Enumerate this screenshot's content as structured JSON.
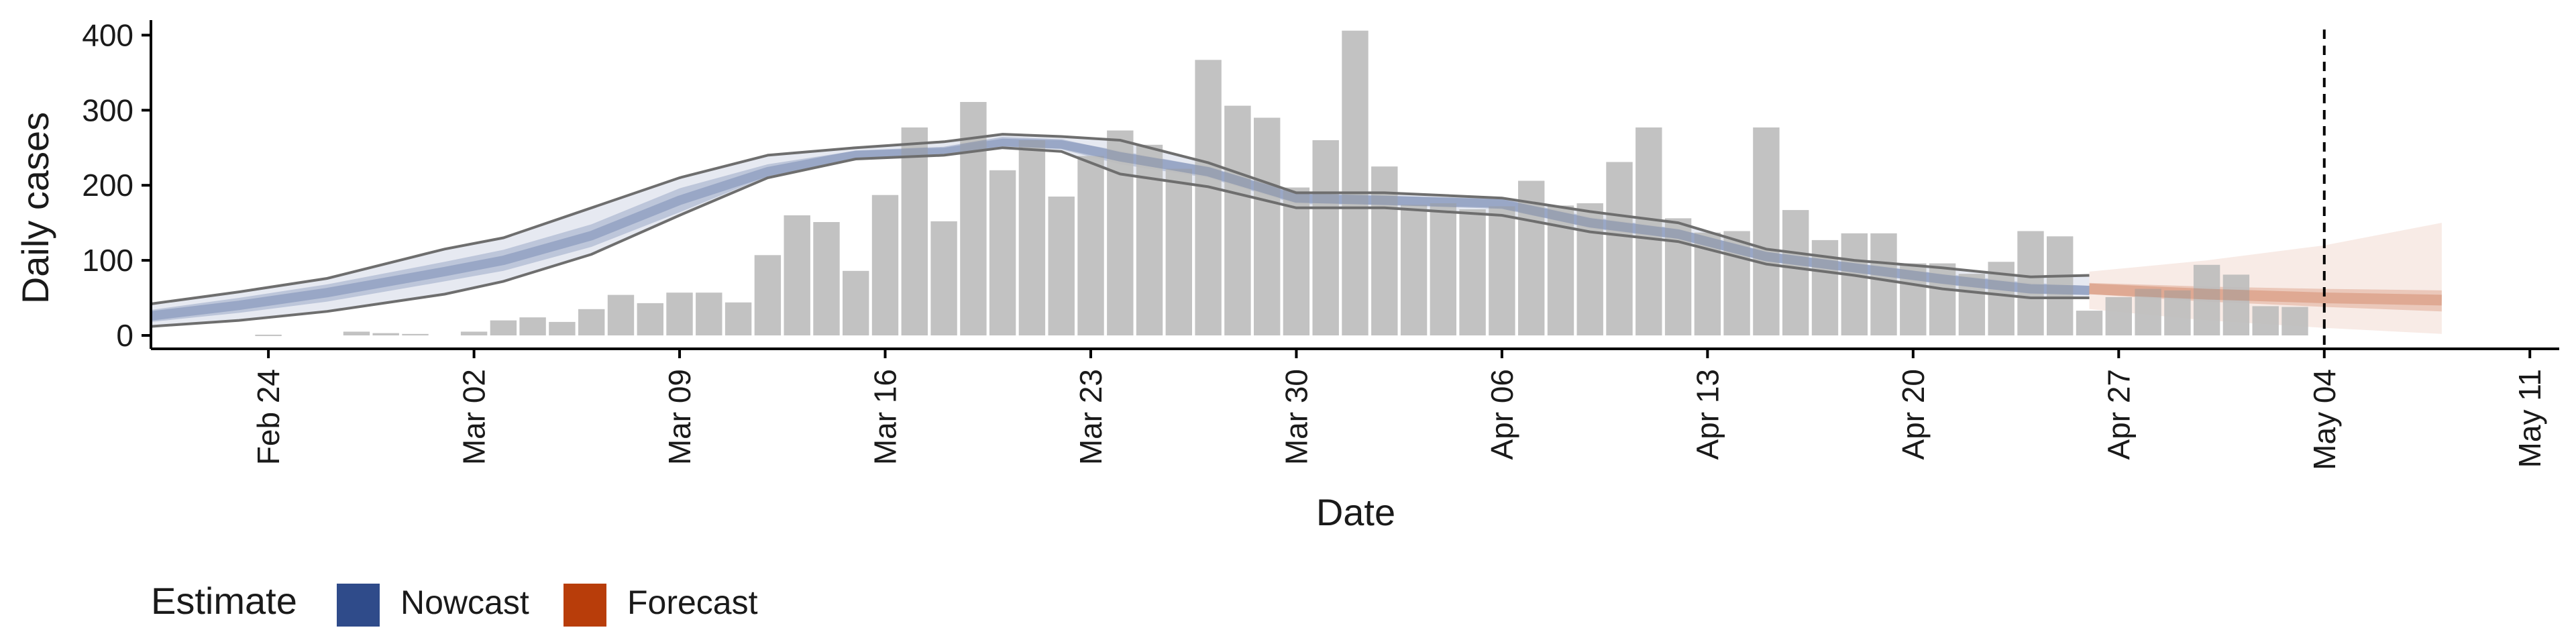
{
  "chart_data": {
    "type": "bar",
    "title": "",
    "xlabel": "Date",
    "ylabel": "Daily cases",
    "ylim": [
      0,
      420
    ],
    "xlim": [
      "2020-02-20",
      "2020-05-12"
    ],
    "yticks": [
      0,
      100,
      200,
      300,
      400
    ],
    "xticks": [
      {
        "date": "2020-02-24",
        "label": "Feb 24"
      },
      {
        "date": "2020-03-02",
        "label": "Mar 02"
      },
      {
        "date": "2020-03-09",
        "label": "Mar 09"
      },
      {
        "date": "2020-03-16",
        "label": "Mar 16"
      },
      {
        "date": "2020-03-23",
        "label": "Mar 23"
      },
      {
        "date": "2020-03-30",
        "label": "Mar 30"
      },
      {
        "date": "2020-04-06",
        "label": "Apr 06"
      },
      {
        "date": "2020-04-13",
        "label": "Apr 13"
      },
      {
        "date": "2020-04-20",
        "label": "Apr 20"
      },
      {
        "date": "2020-04-27",
        "label": "Apr 27"
      },
      {
        "date": "2020-05-04",
        "label": "May 04"
      },
      {
        "date": "2020-05-11",
        "label": "May 11"
      }
    ],
    "reference_line_date": "2020-05-04",
    "grid": false,
    "legend": {
      "position": "bottom-left",
      "title": "Estimate",
      "entries": [
        {
          "name": "Nowcast",
          "color": "#2f4b8a"
        },
        {
          "name": "Forecast",
          "color": "#b83d0a"
        }
      ]
    },
    "bars": {
      "color": "#bdbdbd",
      "dates": [
        "2020-02-21",
        "2020-02-22",
        "2020-02-23",
        "2020-02-24",
        "2020-02-25",
        "2020-02-26",
        "2020-02-27",
        "2020-02-28",
        "2020-02-29",
        "2020-03-01",
        "2020-03-02",
        "2020-03-03",
        "2020-03-04",
        "2020-03-05",
        "2020-03-06",
        "2020-03-07",
        "2020-03-08",
        "2020-03-09",
        "2020-03-10",
        "2020-03-11",
        "2020-03-12",
        "2020-03-13",
        "2020-03-14",
        "2020-03-15",
        "2020-03-16",
        "2020-03-17",
        "2020-03-18",
        "2020-03-19",
        "2020-03-20",
        "2020-03-21",
        "2020-03-22",
        "2020-03-23",
        "2020-03-24",
        "2020-03-25",
        "2020-03-26",
        "2020-03-27",
        "2020-03-28",
        "2020-03-29",
        "2020-03-30",
        "2020-03-31",
        "2020-04-01",
        "2020-04-02",
        "2020-04-03",
        "2020-04-04",
        "2020-04-05",
        "2020-04-06",
        "2020-04-07",
        "2020-04-08",
        "2020-04-09",
        "2020-04-10",
        "2020-04-11",
        "2020-04-12",
        "2020-04-13",
        "2020-04-14",
        "2020-04-15",
        "2020-04-16",
        "2020-04-17",
        "2020-04-18",
        "2020-04-19",
        "2020-04-20",
        "2020-04-21",
        "2020-04-22",
        "2020-04-23",
        "2020-04-24",
        "2020-04-25",
        "2020-04-26",
        "2020-04-27",
        "2020-04-28",
        "2020-04-29",
        "2020-04-30",
        "2020-05-01",
        "2020-05-02",
        "2020-05-03",
        "2020-05-04"
      ],
      "values": [
        0,
        0,
        0,
        1,
        0,
        0,
        5,
        3,
        2,
        0,
        5,
        20,
        24,
        18,
        35,
        54,
        43,
        57,
        57,
        44,
        107,
        160,
        151,
        86,
        187,
        277,
        152,
        311,
        220,
        260,
        185,
        239,
        273,
        254,
        222,
        367,
        306,
        290,
        197,
        260,
        406,
        225,
        174,
        176,
        168,
        172,
        206,
        173,
        176,
        231,
        277,
        156,
        137,
        139,
        277,
        167,
        127,
        136,
        136,
        96,
        96,
        82,
        98,
        139,
        132,
        33,
        51,
        62,
        60,
        94,
        81,
        39,
        38,
        0
      ]
    },
    "series": [
      {
        "name": "Nowcast",
        "color": "#2f4b8a",
        "dates": [
          "2020-02-20",
          "2020-02-23",
          "2020-02-26",
          "2020-03-01",
          "2020-03-03",
          "2020-03-06",
          "2020-03-09",
          "2020-03-12",
          "2020-03-15",
          "2020-03-18",
          "2020-03-20",
          "2020-03-22",
          "2020-03-24",
          "2020-03-27",
          "2020-03-30",
          "2020-04-02",
          "2020-04-06",
          "2020-04-09",
          "2020-04-12",
          "2020-04-15",
          "2020-04-18",
          "2020-04-21",
          "2020-04-24",
          "2020-04-26"
        ],
        "median": [
          26,
          40,
          57,
          85,
          100,
          133,
          180,
          218,
          240,
          245,
          258,
          255,
          238,
          218,
          183,
          180,
          175,
          150,
          135,
          105,
          90,
          75,
          62,
          60
        ],
        "inner_lower": [
          18,
          30,
          45,
          72,
          86,
          118,
          164,
          212,
          236,
          242,
          252,
          248,
          228,
          210,
          175,
          174,
          170,
          143,
          128,
          99,
          84,
          68,
          56,
          54
        ],
        "inner_upper": [
          34,
          50,
          68,
          98,
          114,
          148,
          196,
          228,
          246,
          250,
          262,
          260,
          246,
          224,
          188,
          186,
          182,
          158,
          142,
          111,
          96,
          82,
          70,
          66
        ],
        "lower": [
          12,
          20,
          32,
          55,
          72,
          108,
          160,
          210,
          235,
          240,
          250,
          245,
          215,
          198,
          170,
          170,
          160,
          138,
          125,
          95,
          80,
          62,
          50,
          50
        ],
        "upper": [
          42,
          58,
          76,
          115,
          130,
          170,
          210,
          240,
          250,
          258,
          268,
          265,
          260,
          230,
          190,
          190,
          183,
          165,
          150,
          115,
          100,
          90,
          78,
          80
        ]
      },
      {
        "name": "Forecast",
        "color": "#b83d0a",
        "dates": [
          "2020-04-26",
          "2020-04-30",
          "2020-05-04",
          "2020-05-08"
        ],
        "median": [
          62,
          55,
          50,
          47
        ],
        "inner_lower": [
          55,
          45,
          38,
          32
        ],
        "inner_upper": [
          70,
          65,
          62,
          60
        ],
        "lower": [
          35,
          20,
          10,
          2
        ],
        "upper": [
          85,
          100,
          120,
          150
        ]
      }
    ]
  }
}
